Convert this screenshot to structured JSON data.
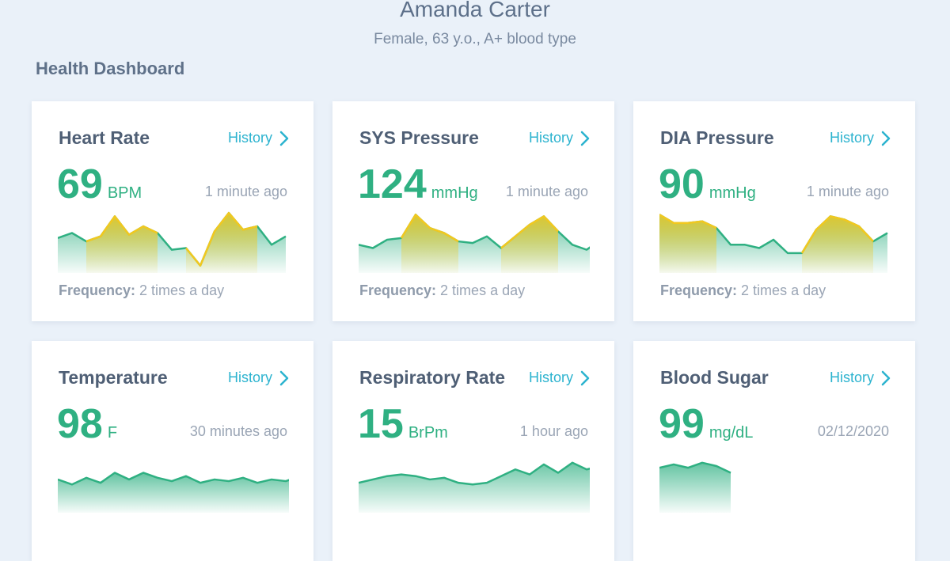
{
  "patient": {
    "name": "Amanda Carter",
    "details": "Female, 63 y.o., A+ blood type"
  },
  "dashboard_title": "Health Dashboard",
  "colors": {
    "accent_green": "#2fb082",
    "accent_yellow": "#f2c81f",
    "link_blue": "#2cb3cf"
  },
  "cards": [
    {
      "title": "Heart Rate",
      "history_label": "History",
      "value": "69",
      "unit": "BPM",
      "timestamp": "1 minute ago",
      "frequency_label": "Frequency:",
      "frequency_value": "2 times a day",
      "series": [
        38,
        44,
        34,
        40,
        64,
        42,
        52,
        44,
        24,
        26,
        5,
        46,
        68,
        48,
        52,
        30,
        40
      ],
      "highlights": [
        [
          2,
          7
        ],
        [
          9,
          14
        ]
      ]
    },
    {
      "title": "SYS Pressure",
      "history_label": "History",
      "value": "124",
      "unit": "mmHg",
      "timestamp": "1 minute ago",
      "frequency_label": "Frequency:",
      "frequency_value": "2 times a day",
      "series": [
        30,
        26,
        36,
        38,
        66,
        50,
        44,
        34,
        32,
        40,
        26,
        40,
        54,
        64,
        46,
        30,
        24,
        36
      ],
      "highlights": [
        [
          3,
          7
        ],
        [
          10,
          14
        ]
      ]
    },
    {
      "title": "DIA Pressure",
      "history_label": "History",
      "value": "90",
      "unit": "mmHg",
      "timestamp": "1 minute ago",
      "frequency_label": "Frequency:",
      "frequency_value": "2 times a day",
      "series": [
        66,
        56,
        56,
        58,
        50,
        30,
        30,
        26,
        36,
        20,
        20,
        48,
        64,
        60,
        52,
        34,
        44
      ],
      "highlights": [
        [
          0,
          4
        ],
        [
          10,
          15
        ]
      ]
    },
    {
      "title": "Temperature",
      "history_label": "History",
      "value": "98",
      "unit": "F",
      "timestamp": "30 minutes ago",
      "frequency_label": "",
      "frequency_value": "",
      "series": [
        36,
        30,
        38,
        32,
        44,
        36,
        44,
        38,
        34,
        40,
        32,
        36,
        34,
        38,
        32,
        36,
        34,
        40
      ],
      "highlights": []
    },
    {
      "title": "Respiratory Rate",
      "history_label": "History",
      "value": "15",
      "unit": "BrPm",
      "timestamp": "1 hour ago",
      "frequency_label": "",
      "frequency_value": "",
      "series": [
        32,
        36,
        40,
        42,
        40,
        36,
        38,
        32,
        30,
        32,
        40,
        48,
        42,
        54,
        44,
        56,
        48,
        52,
        60
      ],
      "highlights": []
    },
    {
      "title": "Blood Sugar",
      "history_label": "History",
      "value": "99",
      "unit": "mg/dL",
      "timestamp": "02/12/2020",
      "frequency_label": "",
      "frequency_value": "",
      "series": [
        50,
        54,
        50,
        56,
        52,
        44
      ],
      "highlights": []
    }
  ]
}
